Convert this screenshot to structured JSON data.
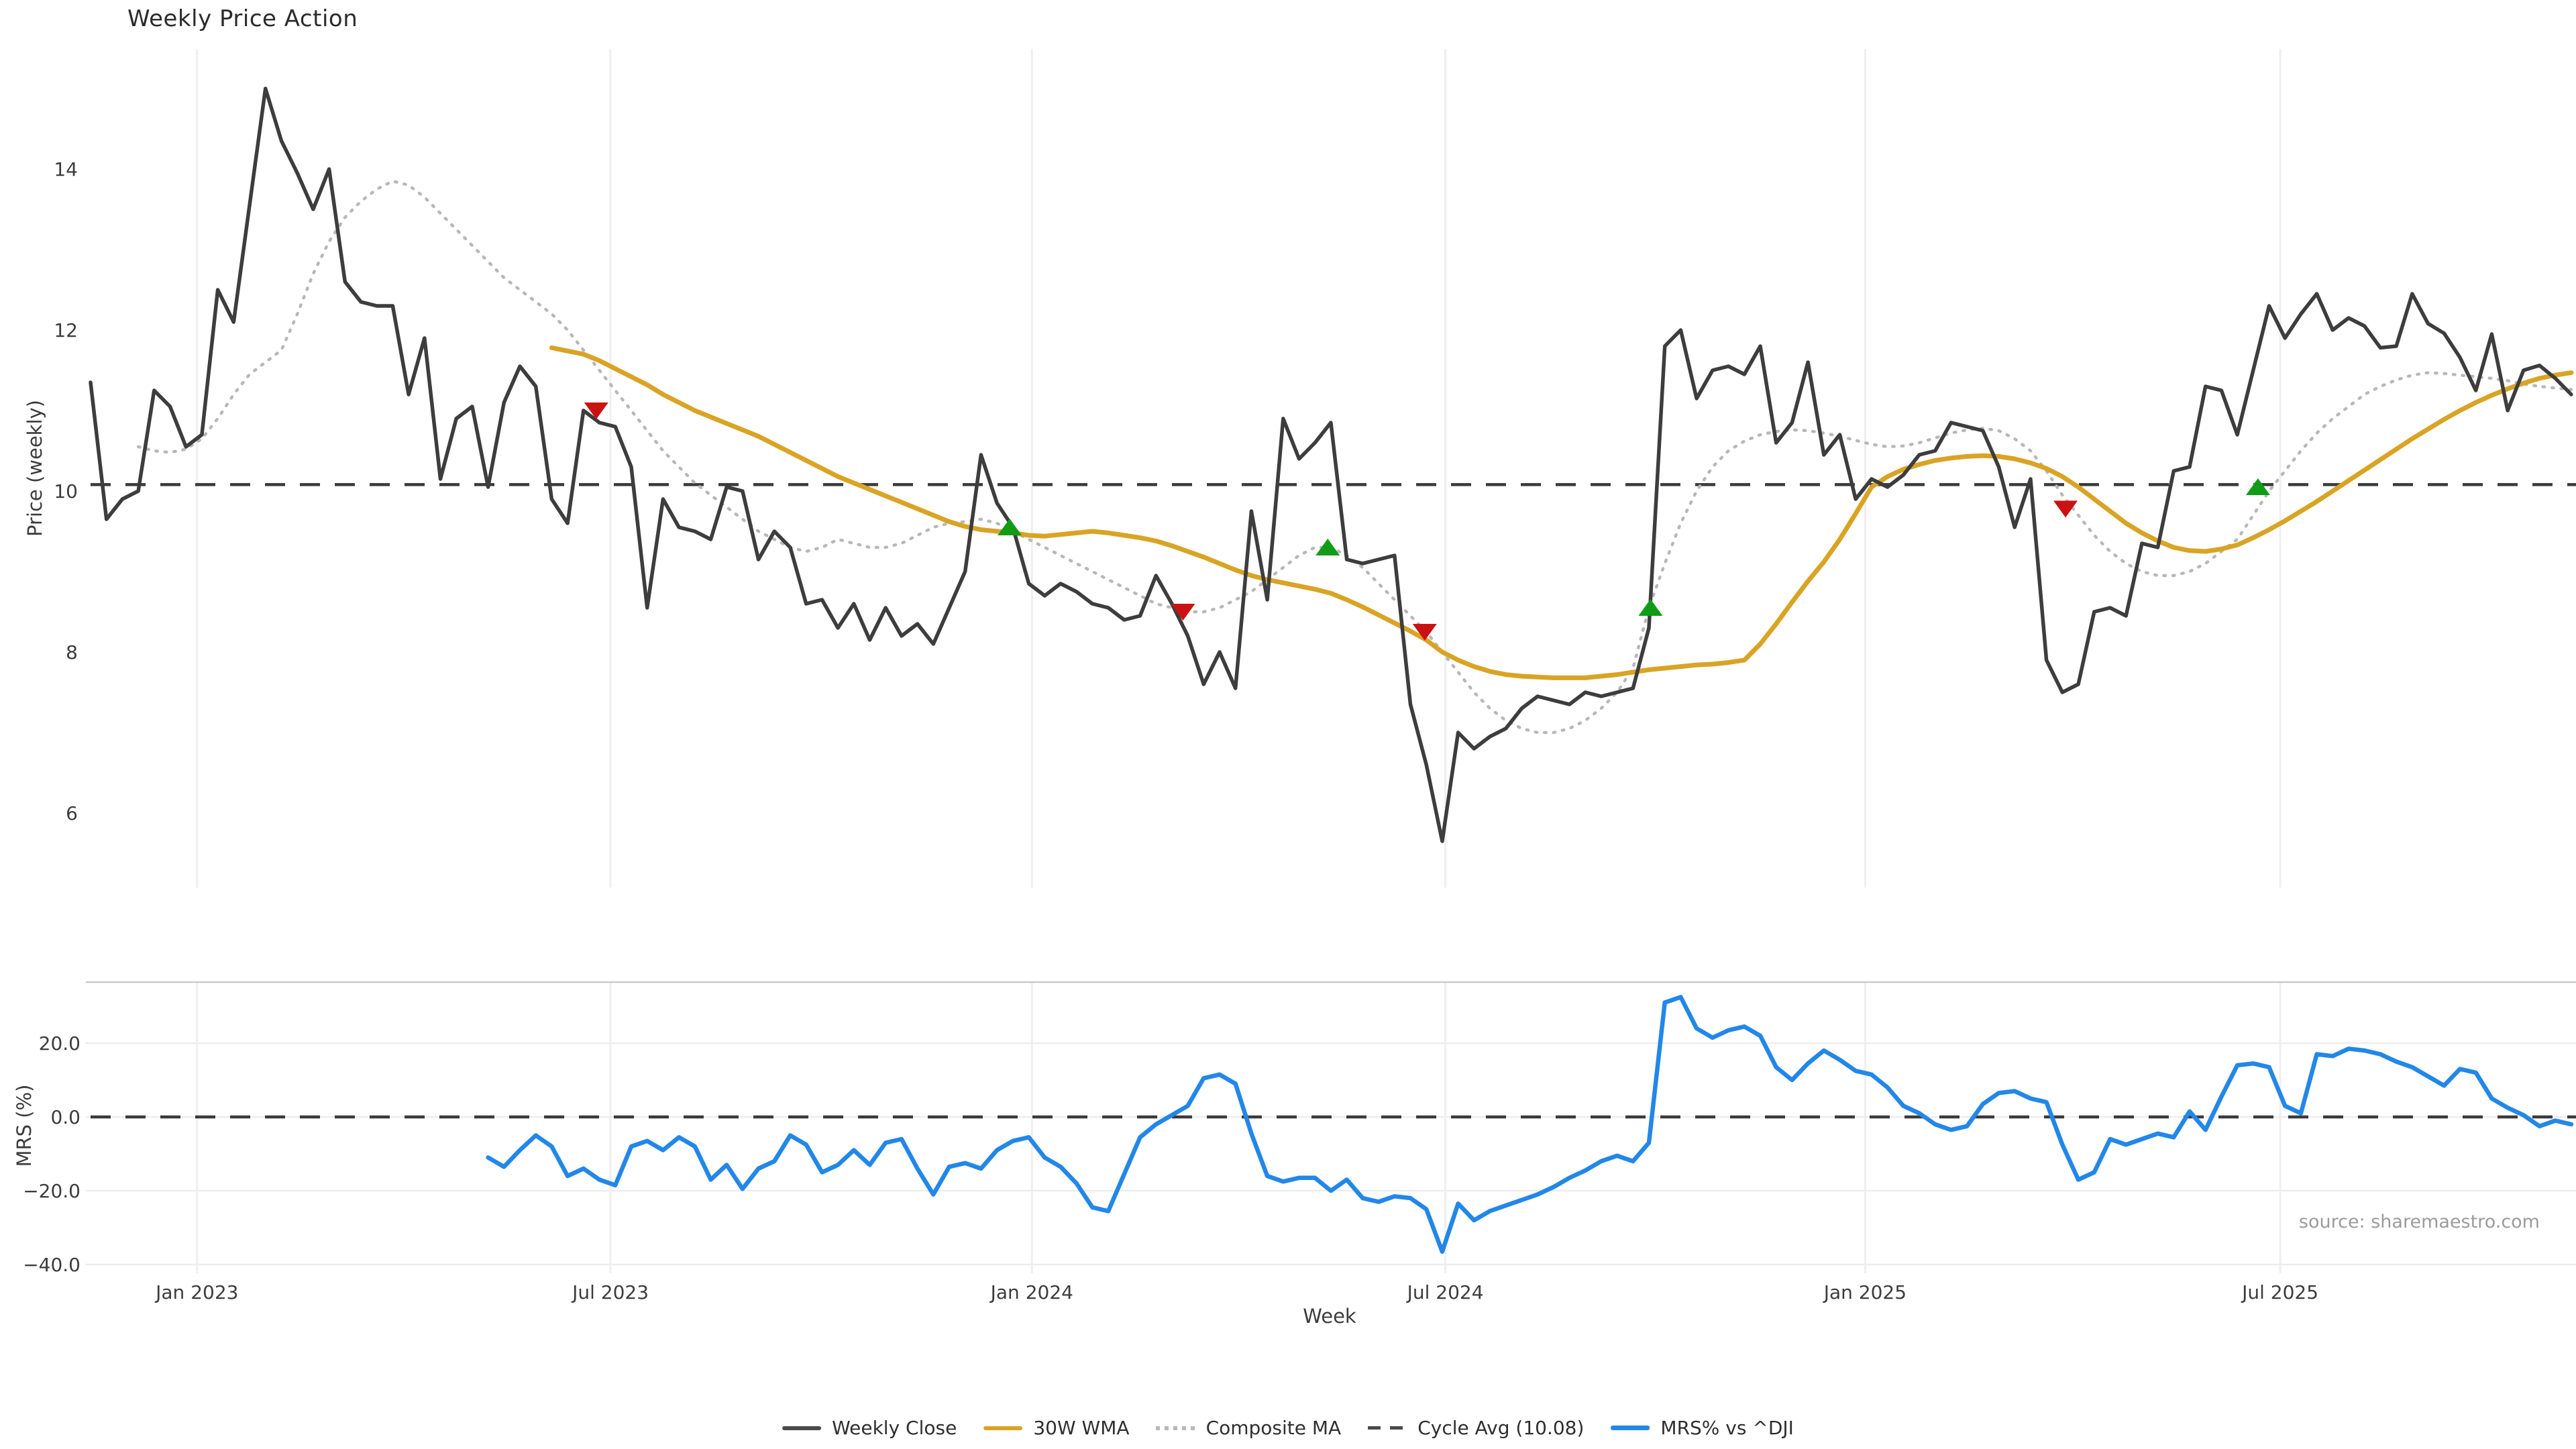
{
  "title": "Weekly Price Action",
  "source": "source: sharemaestro.com",
  "axes": {
    "price_label": "Price (weekly)",
    "mrs_label": "MRS (%)",
    "week_label": "Week"
  },
  "legend": {
    "items": [
      {
        "label": "Weekly Close",
        "swatch": "solid-dark"
      },
      {
        "label": "30W WMA",
        "swatch": "solid-gold"
      },
      {
        "label": "Composite MA",
        "swatch": "dotted-gray"
      },
      {
        "label": "Cycle Avg (10.08)",
        "swatch": "dashed-dark"
      },
      {
        "label": "MRS% vs ^DJI",
        "swatch": "solid-blue"
      }
    ]
  },
  "colors": {
    "close": "#3d3d3d",
    "wma": "#d9a425",
    "composite": "#b8b8b8",
    "cycle_dash": "#3a3a3a",
    "mrs": "#2287e8",
    "buy_marker": "#119c18",
    "sell_marker": "#cb1212",
    "grid_vertical": "#edeff2",
    "grid_horizontal": "#ededed",
    "panel_spine": "#c9c9c9",
    "tick_text": "#3c3c3c"
  },
  "chart_data": {
    "type": "line",
    "title": "Weekly Price Action",
    "xlabel": "Week",
    "x_unit": "weeks_from_2022-11-21",
    "week_range": [
      0,
      156.3
    ],
    "x_ticks": [
      {
        "label": "Jan 2023",
        "week": 6.7
      },
      {
        "label": "Jul 2023",
        "week": 32.7
      },
      {
        "label": "Jan 2024",
        "week": 59.2
      },
      {
        "label": "Jul 2024",
        "week": 85.2
      },
      {
        "label": "Jan 2025",
        "week": 111.6
      },
      {
        "label": "Jul 2025",
        "week": 137.7
      }
    ],
    "panels": {
      "price": {
        "ylabel": "Price (weekly)",
        "ylim": [
          5.1,
          15.5
        ],
        "y_ticks": [
          {
            "v": 14,
            "label": "14"
          },
          {
            "v": 12,
            "label": "12"
          },
          {
            "v": 10,
            "label": "10"
          },
          {
            "v": 8,
            "label": "8"
          },
          {
            "v": 6,
            "label": "6"
          }
        ],
        "cycle_avg": 10.08,
        "series": {
          "close": {
            "name": "Weekly Close",
            "start_week": 0,
            "values": [
              11.35,
              9.65,
              9.9,
              10.0,
              11.25,
              11.05,
              10.55,
              10.7,
              12.5,
              12.1,
              13.55,
              15.0,
              14.35,
              13.95,
              13.5,
              14.0,
              12.6,
              12.35,
              12.3,
              12.3,
              11.2,
              11.9,
              10.15,
              10.9,
              11.05,
              10.05,
              11.1,
              11.55,
              11.3,
              9.9,
              9.6,
              11.0,
              10.85,
              10.8,
              10.3,
              8.55,
              9.9,
              9.55,
              9.5,
              9.4,
              10.05,
              10.0,
              9.15,
              9.5,
              9.3,
              8.6,
              8.65,
              8.3,
              8.6,
              8.15,
              8.55,
              8.2,
              8.35,
              8.1,
              8.55,
              9.0,
              10.45,
              9.85,
              9.55,
              8.85,
              8.7,
              8.85,
              8.75,
              8.6,
              8.55,
              8.4,
              8.45,
              8.95,
              8.6,
              8.2,
              7.6,
              8.0,
              7.55,
              9.75,
              8.65,
              10.9,
              10.4,
              10.6,
              10.85,
              9.15,
              9.1,
              9.15,
              9.2,
              7.35,
              6.6,
              5.65,
              7.0,
              6.8,
              6.95,
              7.05,
              7.3,
              7.45,
              7.4,
              7.35,
              7.5,
              7.45,
              7.5,
              7.55,
              8.3,
              11.8,
              12.0,
              11.15,
              11.5,
              11.55,
              11.45,
              11.8,
              10.6,
              10.85,
              11.6,
              10.45,
              10.7,
              9.9,
              10.15,
              10.05,
              10.2,
              10.45,
              10.5,
              10.85,
              10.8,
              10.75,
              10.3,
              9.55,
              10.15,
              7.9,
              7.5,
              7.6,
              8.5,
              8.55,
              8.45,
              9.35,
              9.3,
              10.25,
              10.3,
              11.3,
              11.25,
              10.7,
              11.5,
              12.3,
              11.9,
              12.2,
              12.45,
              12.0,
              12.15,
              12.05,
              11.78,
              11.8,
              12.45,
              12.08,
              11.96,
              11.66,
              11.25,
              11.95,
              11.0,
              11.5,
              11.56,
              11.4,
              11.2
            ]
          },
          "wma": {
            "name": "30W WMA",
            "start_week": 29,
            "values": [
              11.78,
              11.74,
              11.7,
              11.62,
              11.52,
              11.42,
              11.32,
              11.2,
              11.1,
              11.0,
              10.92,
              10.84,
              10.76,
              10.68,
              10.58,
              10.48,
              10.38,
              10.28,
              10.18,
              10.1,
              10.02,
              9.94,
              9.86,
              9.78,
              9.7,
              9.62,
              9.56,
              9.52,
              9.5,
              9.48,
              9.45,
              9.44,
              9.46,
              9.48,
              9.5,
              9.48,
              9.45,
              9.42,
              9.38,
              9.32,
              9.25,
              9.18,
              9.1,
              9.02,
              8.95,
              8.9,
              8.86,
              8.82,
              8.78,
              8.73,
              8.65,
              8.56,
              8.46,
              8.36,
              8.26,
              8.15,
              8.0,
              7.9,
              7.82,
              7.76,
              7.72,
              7.7,
              7.69,
              7.68,
              7.68,
              7.68,
              7.7,
              7.72,
              7.75,
              7.78,
              7.8,
              7.82,
              7.84,
              7.85,
              7.87,
              7.9,
              8.1,
              8.35,
              8.62,
              8.88,
              9.12,
              9.4,
              9.72,
              10.05,
              10.18,
              10.27,
              10.33,
              10.38,
              10.41,
              10.43,
              10.44,
              10.43,
              10.4,
              10.35,
              10.28,
              10.18,
              10.05,
              9.9,
              9.75,
              9.6,
              9.48,
              9.38,
              9.3,
              9.26,
              9.25,
              9.28,
              9.33,
              9.42,
              9.52,
              9.63,
              9.75,
              9.87,
              10.0,
              10.13,
              10.26,
              10.39,
              10.52,
              10.65,
              10.77,
              10.89,
              11.0,
              11.1,
              11.19,
              11.27,
              11.34,
              11.4,
              11.44,
              11.47
            ]
          },
          "composite": {
            "name": "Composite MA",
            "start_week": 3,
            "values": [
              10.55,
              10.5,
              10.48,
              10.52,
              10.65,
              10.9,
              11.2,
              11.45,
              11.6,
              11.75,
              12.2,
              12.7,
              13.1,
              13.4,
              13.6,
              13.75,
              13.85,
              13.8,
              13.65,
              13.45,
              13.25,
              13.05,
              12.85,
              12.65,
              12.5,
              12.35,
              12.2,
              12.0,
              11.75,
              11.5,
              11.25,
              11.0,
              10.75,
              10.5,
              10.3,
              10.1,
              9.95,
              9.8,
              9.65,
              9.5,
              9.4,
              9.3,
              9.25,
              9.3,
              9.4,
              9.35,
              9.3,
              9.3,
              9.35,
              9.45,
              9.55,
              9.6,
              9.62,
              9.65,
              9.6,
              9.5,
              9.4,
              9.3,
              9.2,
              9.1,
              9.0,
              8.9,
              8.8,
              8.7,
              8.6,
              8.55,
              8.5,
              8.5,
              8.55,
              8.65,
              8.75,
              8.9,
              9.05,
              9.2,
              9.3,
              9.3,
              9.2,
              9.05,
              8.85,
              8.65,
              8.45,
              8.25,
              8.0,
              7.75,
              7.5,
              7.3,
              7.15,
              7.05,
              7.0,
              7.0,
              7.05,
              7.15,
              7.3,
              7.5,
              7.8,
              8.55,
              9.1,
              9.6,
              10.0,
              10.3,
              10.5,
              10.62,
              10.7,
              10.74,
              10.76,
              10.75,
              10.72,
              10.68,
              10.63,
              10.58,
              10.55,
              10.56,
              10.6,
              10.66,
              10.72,
              10.76,
              10.78,
              10.75,
              10.65,
              10.5,
              10.25,
              9.95,
              9.7,
              9.45,
              9.25,
              9.1,
              9.0,
              8.95,
              8.95,
              9.0,
              9.1,
              9.25,
              9.4,
              9.7,
              10.0,
              10.25,
              10.5,
              10.72,
              10.9,
              11.05,
              11.2,
              11.3,
              11.38,
              11.44,
              11.47,
              11.46,
              11.44,
              11.42,
              11.4,
              11.37,
              11.33,
              11.3,
              11.28,
              11.26
            ]
          }
        },
        "markers": [
          {
            "week": 31.8,
            "value": 11.0,
            "type": "sell"
          },
          {
            "week": 57.8,
            "value": 9.55,
            "type": "buy"
          },
          {
            "week": 68.7,
            "value": 8.5,
            "type": "sell"
          },
          {
            "week": 77.8,
            "value": 9.3,
            "type": "buy"
          },
          {
            "week": 83.9,
            "value": 8.25,
            "type": "sell"
          },
          {
            "week": 98.1,
            "value": 8.55,
            "type": "buy"
          },
          {
            "week": 124.2,
            "value": 9.78,
            "type": "sell"
          },
          {
            "week": 136.3,
            "value": 10.05,
            "type": "buy"
          }
        ]
      },
      "mrs": {
        "ylabel": "MRS (%)",
        "ylim": [
          -42.5,
          36.5
        ],
        "y_ticks": [
          {
            "v": 20,
            "label": "20.0"
          },
          {
            "v": 0,
            "label": "0.0"
          },
          {
            "v": -20,
            "label": "−20.0"
          },
          {
            "v": -40,
            "label": "−40.0"
          }
        ],
        "zero_dashed": true,
        "series": {
          "mrs": {
            "name": "MRS% vs ^DJI",
            "start_week": 25,
            "values": [
              -11,
              -13.5,
              -9,
              -5,
              -8,
              -16,
              -14,
              -17,
              -18.5,
              -8,
              -6.5,
              -9,
              -5.5,
              -8,
              -17,
              -13,
              -19.5,
              -14,
              -12,
              -5,
              -7.5,
              -15,
              -13,
              -9,
              -13,
              -7,
              -6,
              -14,
              -21,
              -13.5,
              -12.5,
              -14,
              -9,
              -6.5,
              -5.5,
              -11,
              -13.5,
              -18,
              -24.5,
              -25.5,
              -15.5,
              -5.5,
              -2,
              0.5,
              3,
              10.5,
              11.5,
              9,
              -4.5,
              -16,
              -17.5,
              -16.5,
              -16.5,
              -20,
              -17,
              -22,
              -23,
              -21.5,
              -22,
              -25,
              -36.5,
              -23.5,
              -28,
              -25.5,
              -24,
              -22.5,
              -21,
              -19,
              -16.5,
              -14.5,
              -12,
              -10.5,
              -12,
              -7,
              31,
              32.5,
              24,
              21.5,
              23.5,
              24.5,
              22,
              13.5,
              10,
              14.5,
              18,
              15.5,
              12.5,
              11.5,
              8,
              3,
              1,
              -2,
              -3.5,
              -2.5,
              3.5,
              6.5,
              7,
              5,
              4,
              -7.5,
              -17,
              -15,
              -6,
              -7.5,
              -6,
              -4.5,
              -5.5,
              1.5,
              -3.5,
              5.5,
              14,
              14.5,
              13.5,
              3,
              1,
              17,
              16.5,
              18.5,
              18,
              17,
              15,
              13.5,
              11,
              8.5,
              13,
              12,
              5,
              2.5,
              0.5,
              -2.5,
              -1,
              -2
            ]
          }
        }
      }
    },
    "legend_entries": [
      "Weekly Close",
      "30W WMA",
      "Composite MA",
      "Cycle Avg (10.08)",
      "MRS% vs ^DJI"
    ],
    "grid": "vertical-on-date-ticks, horizontal-on-mrs-ticks",
    "legend_position": "bottom-center"
  }
}
